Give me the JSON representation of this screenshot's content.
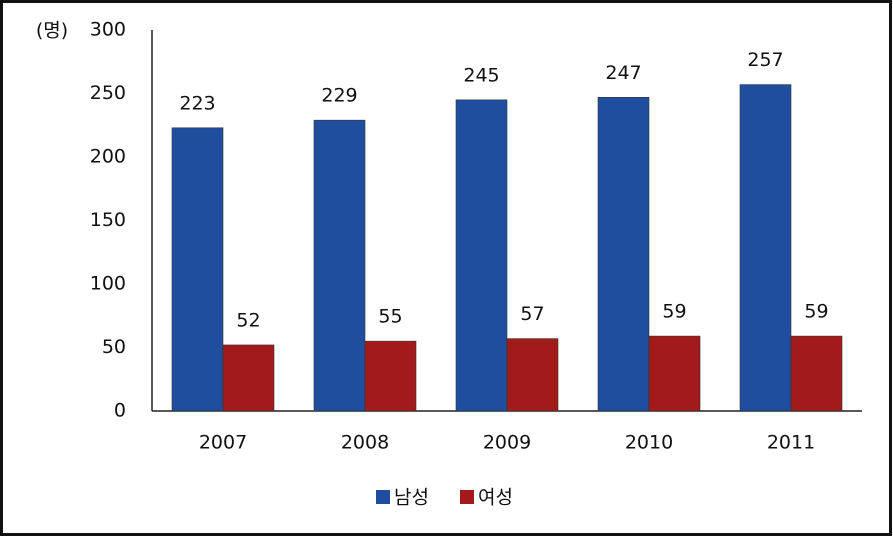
{
  "chart_data": {
    "type": "bar",
    "y_unit_label": "(명)",
    "categories": [
      "2007",
      "2008",
      "2009",
      "2010",
      "2011"
    ],
    "series": [
      {
        "name": "남성",
        "color": "#1f4e9e",
        "values": [
          223,
          229,
          245,
          247,
          257
        ]
      },
      {
        "name": "여성",
        "color": "#a31a1a",
        "values": [
          52,
          55,
          57,
          59,
          59
        ]
      }
    ],
    "ylim": [
      0,
      300
    ],
    "yticks": [
      0,
      50,
      100,
      150,
      200,
      250,
      300
    ],
    "grid": false,
    "legend": "bottom"
  }
}
